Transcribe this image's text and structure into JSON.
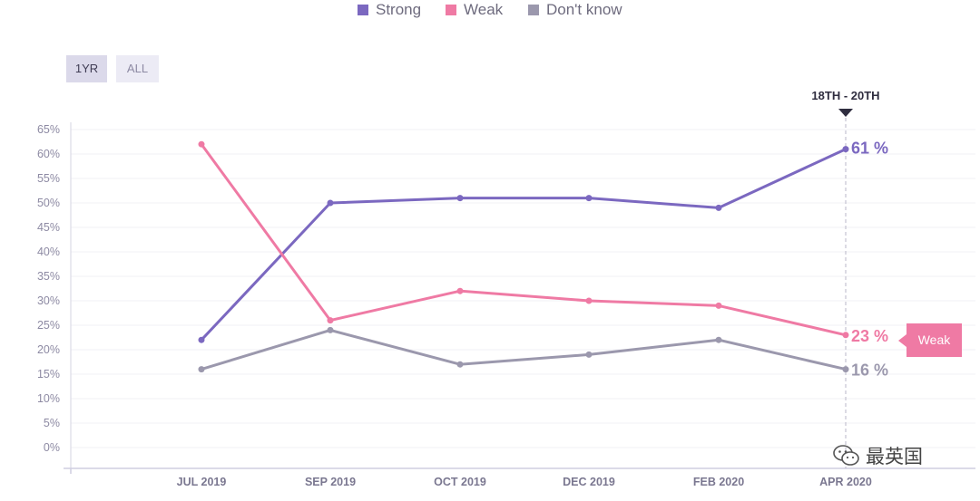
{
  "legend": {
    "items": [
      {
        "label": "Strong",
        "color": "#7b68c0"
      },
      {
        "label": "Weak",
        "color": "#ef7aa4"
      },
      {
        "label": "Don't know",
        "color": "#9b98ad"
      }
    ]
  },
  "range_buttons": {
    "one_year": "1YR",
    "all": "ALL",
    "selected": "1YR"
  },
  "marker": {
    "label": "18TH - 20TH",
    "category": "APR 2020"
  },
  "tooltip": {
    "label": "Weak"
  },
  "watermark": {
    "text": "最英国",
    "icon": "wechat-icon"
  },
  "chart_data": {
    "type": "line",
    "title": "",
    "xlabel": "",
    "ylabel": "",
    "categories": [
      "JUL 2019",
      "SEP 2019",
      "OCT 2019",
      "DEC 2019",
      "FEB 2020",
      "APR 2020"
    ],
    "ylim": [
      -5,
      65
    ],
    "yticks": [
      0,
      5,
      10,
      15,
      20,
      25,
      30,
      35,
      40,
      45,
      50,
      55,
      60,
      65
    ],
    "ytick_labels": [
      "0%",
      "5%",
      "10%",
      "15%",
      "20%",
      "25%",
      "30%",
      "35%",
      "40%",
      "45%",
      "50%",
      "55%",
      "60%",
      "65%"
    ],
    "grid": true,
    "legend_position": "top-center",
    "series": [
      {
        "name": "Strong",
        "color": "#7b68c0",
        "values": [
          22,
          50,
          51,
          51,
          49,
          61
        ],
        "end_label": "61 %"
      },
      {
        "name": "Weak",
        "color": "#ef7aa4",
        "values": [
          62,
          26,
          32,
          30,
          29,
          23
        ],
        "end_label": "23 %"
      },
      {
        "name": "Don't know",
        "color": "#9b98ad",
        "values": [
          16,
          24,
          17,
          19,
          22,
          16
        ],
        "end_label": "16 %"
      }
    ]
  }
}
